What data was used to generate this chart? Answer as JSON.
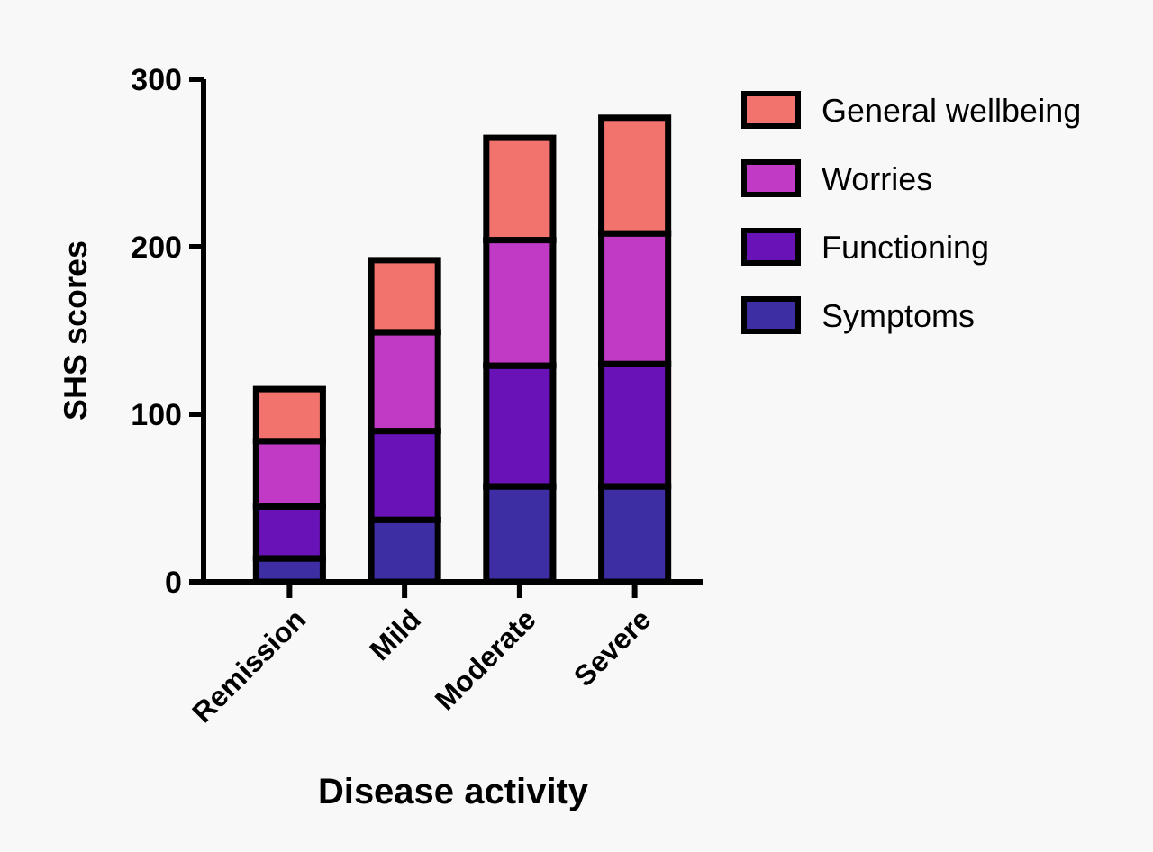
{
  "chart_data": {
    "type": "bar",
    "stacked": true,
    "xlabel": "Disease activity",
    "ylabel": "SHS scores",
    "categories": [
      "Remission",
      "Mild",
      "Moderate",
      "Severe"
    ],
    "series": [
      {
        "name": "Symptoms",
        "color": "#3d2ea3",
        "values": [
          14,
          37,
          57,
          57
        ]
      },
      {
        "name": "Functioning",
        "color": "#6812b8",
        "values": [
          31,
          53,
          72,
          73
        ]
      },
      {
        "name": "Worries",
        "color": "#c03ac6",
        "values": [
          39,
          59,
          75,
          78
        ]
      },
      {
        "name": "General wellbeing",
        "color": "#f2736e",
        "values": [
          31,
          43,
          61,
          69
        ]
      }
    ],
    "ylim": [
      0,
      300
    ],
    "yticks": [
      0,
      100,
      200,
      300
    ],
    "grid": false,
    "legend": "right"
  }
}
